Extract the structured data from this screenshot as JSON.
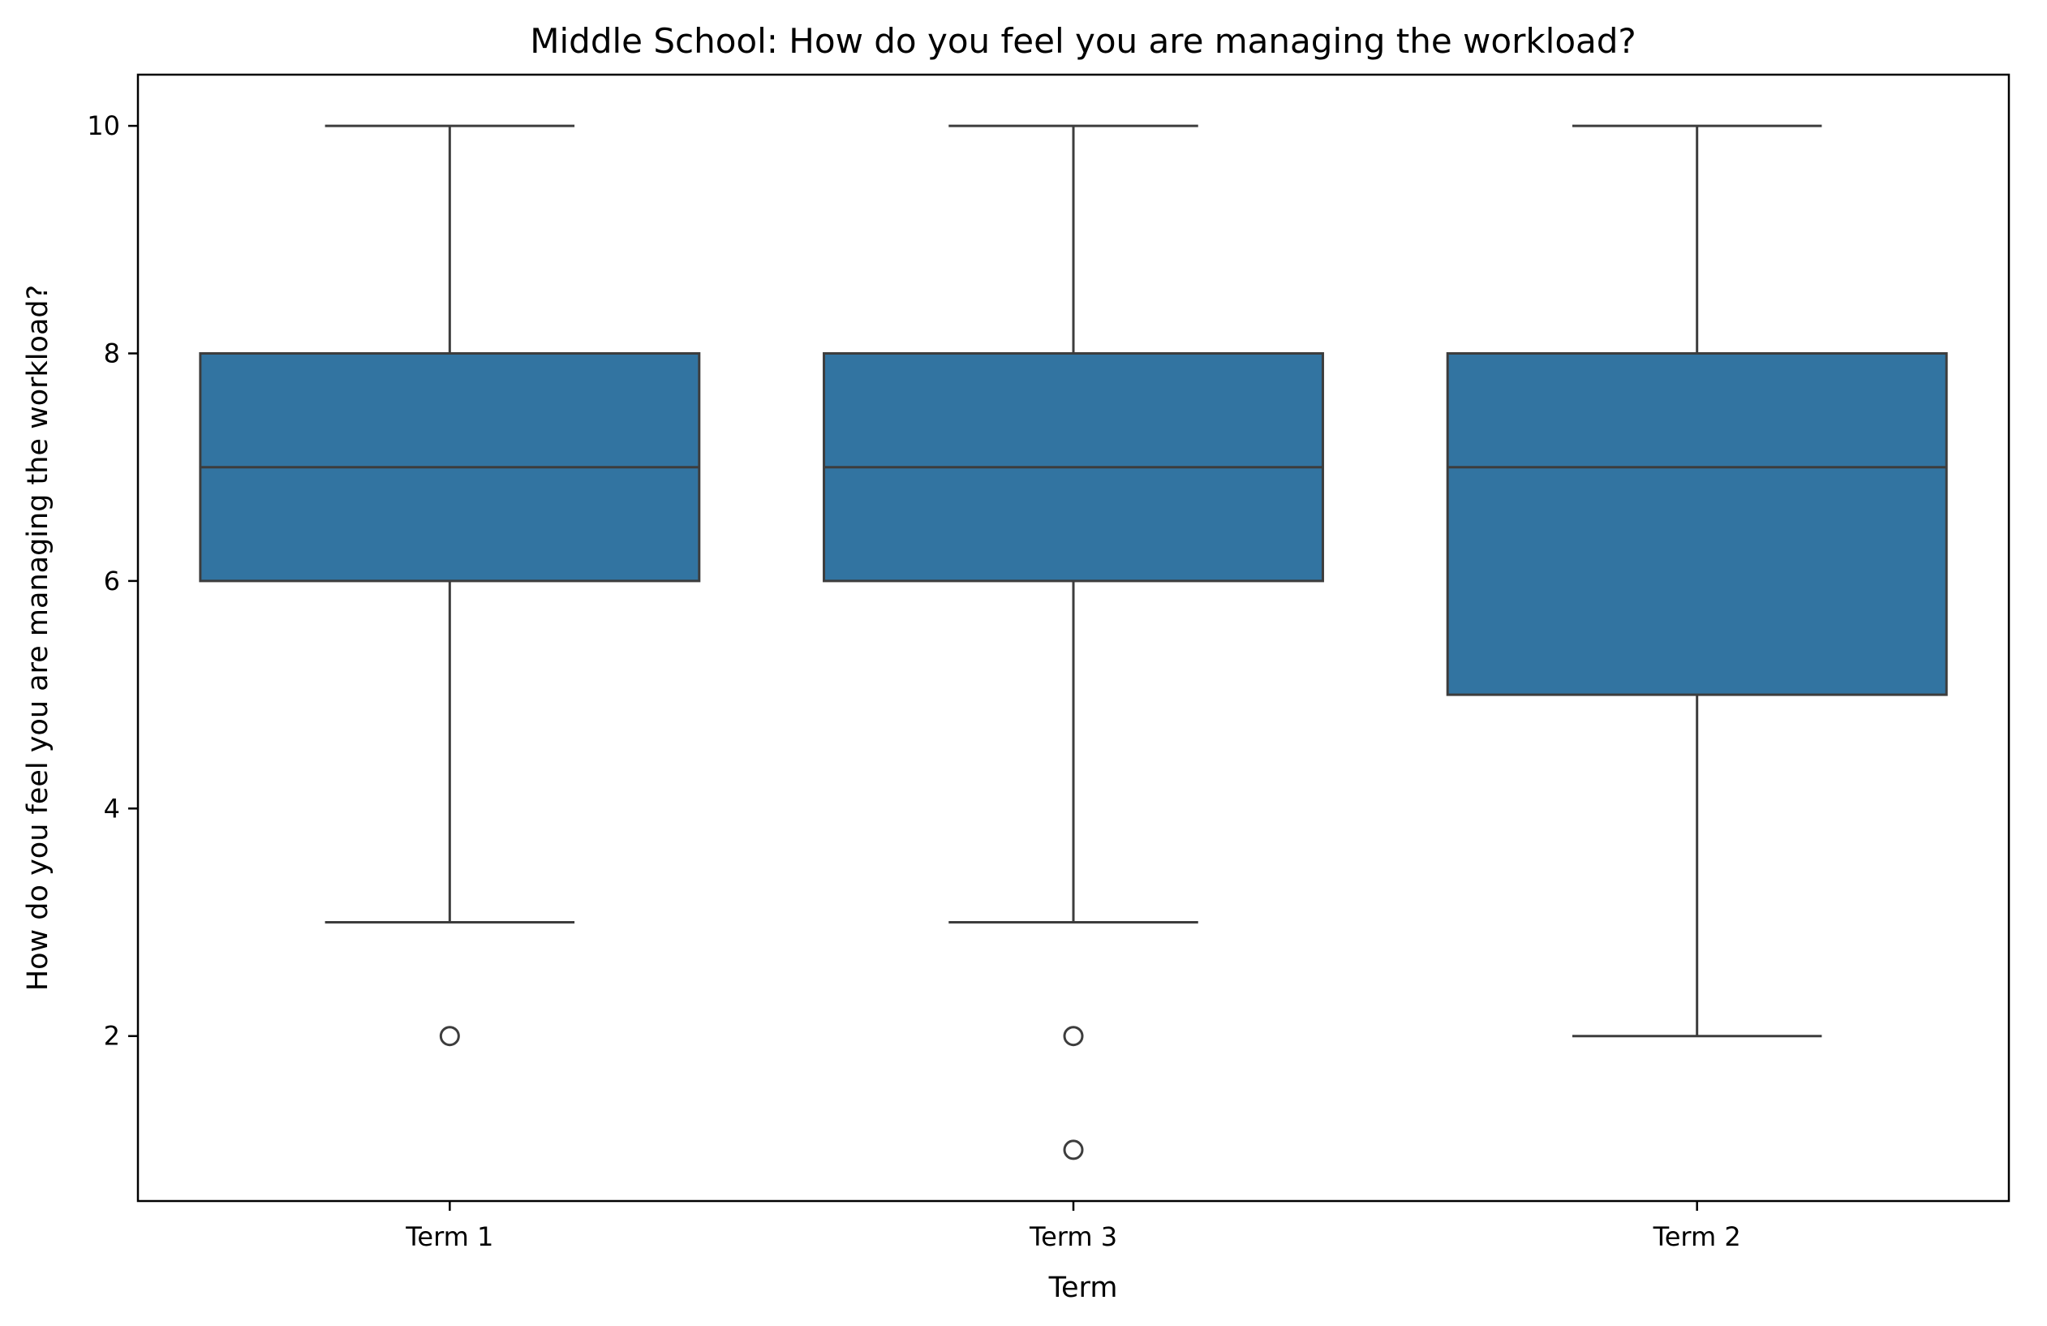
{
  "chart_data": {
    "type": "boxplot",
    "title": "Middle School: How do you feel you are managing the workload?",
    "xlabel": "Term",
    "ylabel": "How do you feel you are managing the workload?",
    "categories": [
      "Term 1",
      "Term 3",
      "Term 2"
    ],
    "boxes": [
      {
        "category": "Term 1",
        "whisker_low": 3,
        "q1": 6,
        "median": 7,
        "q3": 8,
        "whisker_high": 10,
        "outliers": [
          2
        ]
      },
      {
        "category": "Term 3",
        "whisker_low": 3,
        "q1": 6,
        "median": 7,
        "q3": 8,
        "whisker_high": 10,
        "outliers": [
          2,
          1
        ]
      },
      {
        "category": "Term 2",
        "whisker_low": 2,
        "q1": 5,
        "median": 7,
        "q3": 8,
        "whisker_high": 10,
        "outliers": []
      }
    ],
    "ylim": [
      0.55,
      10.45
    ],
    "yticks": [
      "2",
      "4",
      "6",
      "8",
      "10"
    ],
    "grid": false,
    "colors": {
      "box_fill": "#3274a1",
      "line": "#3d3d3d",
      "axes": "#000000"
    }
  }
}
